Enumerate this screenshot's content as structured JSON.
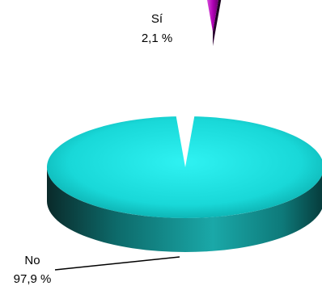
{
  "chart_data": {
    "type": "pie",
    "style": "3d-exploded",
    "categories": [
      "Sí",
      "No"
    ],
    "values": [
      2.1,
      97.9
    ],
    "value_labels": [
      "2,1 %",
      "97,9 %"
    ],
    "colors": [
      "#b000b5",
      "#1ee6e6"
    ],
    "legend": "none"
  }
}
